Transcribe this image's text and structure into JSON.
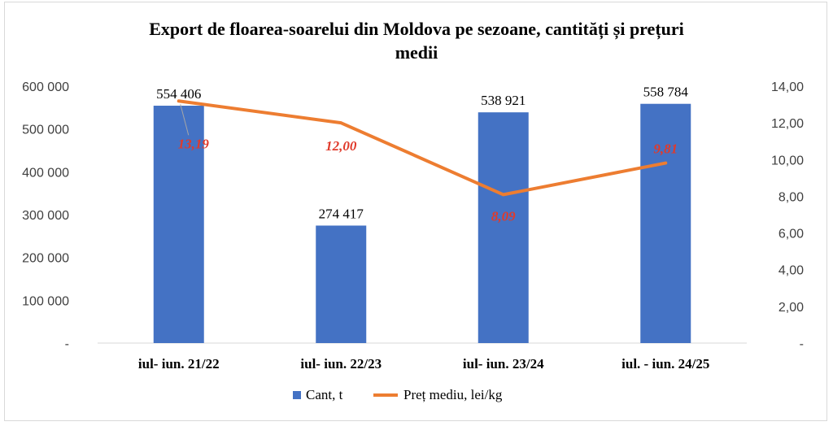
{
  "chart_data": {
    "type": "bar+line",
    "title": "Export de floarea-soarelui  din  Moldova pe sezoane, cantități și prețuri medii",
    "title_lines": [
      "Export de floarea-soarelui  din  Moldova pe sezoane, cantități și prețuri",
      "medii"
    ],
    "categories": [
      "iul- iun. 21/22",
      "iul- iun. 22/23",
      "iul- iun. 23/24",
      "iul. - iun. 24/25"
    ],
    "series": [
      {
        "name": "Cant, t",
        "type": "bar",
        "axis": "left",
        "color": "#4472c4",
        "values": [
          554406,
          274417,
          538921,
          558784
        ],
        "labels": [
          "554 406",
          "274 417",
          "538 921",
          "558 784"
        ]
      },
      {
        "name": "Preț mediu, lei/kg",
        "type": "line",
        "axis": "right",
        "color": "#ed7d31",
        "values": [
          13.19,
          12.0,
          8.09,
          9.81
        ],
        "labels": [
          "13,19",
          "12,00",
          "8,09",
          "9,81"
        ],
        "label_color": "#e03a2b"
      }
    ],
    "y_left": {
      "min": 0,
      "max": 600000,
      "ticks": [
        "-",
        "100 000",
        "200 000",
        "300 000",
        "400 000",
        "500 000",
        "600 000"
      ]
    },
    "y_right": {
      "min": 0,
      "max": 14,
      "ticks": [
        "-",
        "2,00",
        "4,00",
        "6,00",
        "8,00",
        "10,00",
        "12,00",
        "14,00"
      ]
    },
    "legend_position": "bottom",
    "grid": false
  }
}
